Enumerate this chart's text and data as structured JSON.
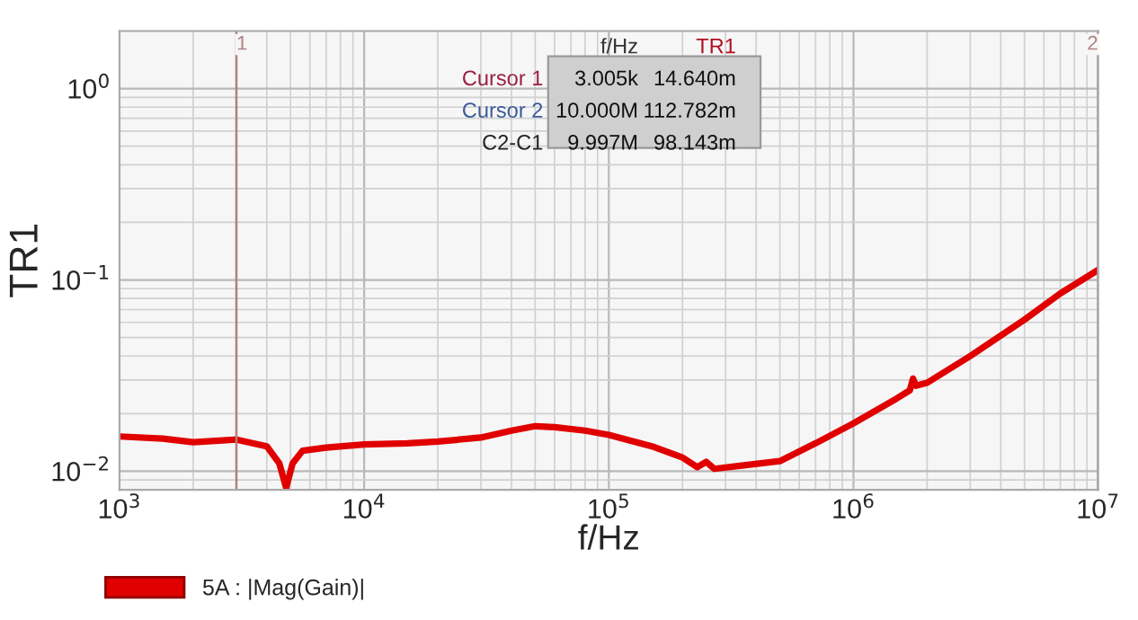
{
  "chart_data": {
    "type": "line",
    "xlabel": "f/Hz",
    "ylabel": "TR1",
    "log": "xy",
    "grid": true,
    "legend": "bottom left",
    "xlim": [
      1000,
      10000000
    ],
    "xticks": [
      {
        "value": 1000,
        "label": "10$^{3}$"
      },
      {
        "value": 10000,
        "label": "10$^{4}$"
      },
      {
        "value": 100000,
        "label": "10$^{5}$"
      },
      {
        "value": 1000000,
        "label": "10$^{6}$"
      },
      {
        "value": 10000000,
        "label": "10$^{7}$"
      }
    ],
    "ylim": [
      0.008,
      2
    ],
    "yticks": [
      {
        "value": 0.01,
        "label": "10$^{−2}$"
      },
      {
        "value": 0.1,
        "label": "10$^{−1}$"
      },
      {
        "value": 1,
        "label": "10$^{0}$"
      }
    ],
    "ref_lines": [
      {
        "axis": "x",
        "value": 3005,
        "color": "#b08080"
      },
      {
        "axis": "x",
        "value": 10000000,
        "color": "#b08080"
      }
    ],
    "annotations": [
      {
        "text": "1",
        "x": 3005,
        "y": 1.9
      },
      {
        "text": "2",
        "x": 10000000,
        "y": 1.9
      },
      "f/Hz",
      "TR1",
      "Cursor 1",
      "3.005k",
      "14.640m",
      "Cursor 2",
      "10.000M",
      "112.782m",
      "C2-C1",
      "9.997M",
      "98.143m"
    ],
    "series": [
      {
        "name": "5A : |Mag(Gain)|",
        "color": "#e00000",
        "x": [
          1000,
          1500,
          2000,
          3005,
          4000,
          4500,
          4800,
          5100,
          5600,
          7000,
          10000,
          15000,
          20000,
          30000,
          40000,
          50000,
          60000,
          80000,
          100000,
          150000,
          200000,
          230000,
          250000,
          270000,
          350000,
          500000,
          700000,
          1000000,
          1500000,
          1700000,
          1750000,
          1800000,
          2000000,
          3000000,
          5000000,
          7000000,
          10000000
        ],
        "values": [
          0.0152,
          0.0148,
          0.0142,
          0.01464,
          0.0135,
          0.011,
          0.0082,
          0.011,
          0.0128,
          0.0133,
          0.0138,
          0.014,
          0.0143,
          0.015,
          0.0163,
          0.0172,
          0.017,
          0.0163,
          0.0155,
          0.0135,
          0.0118,
          0.0105,
          0.0112,
          0.0103,
          0.0107,
          0.0113,
          0.014,
          0.0178,
          0.024,
          0.0265,
          0.0305,
          0.028,
          0.029,
          0.04,
          0.062,
          0.085,
          0.1128
        ]
      }
    ]
  }
}
